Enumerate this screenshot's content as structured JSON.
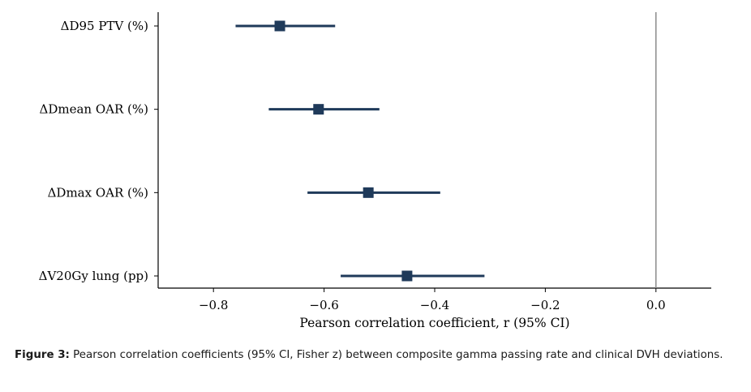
{
  "chart_data": {
    "type": "forest",
    "xlabel": "Pearson correlation coefficient, r (95% CI)",
    "xlim": [
      -0.9,
      0.1
    ],
    "xticks": [
      -0.8,
      -0.6,
      -0.4,
      -0.2,
      0.0
    ],
    "xtick_labels": [
      "−0.8",
      "−0.6",
      "−0.4",
      "−0.2",
      "0.0"
    ],
    "reference_line": 0.0,
    "categories": [
      "ΔD95 PTV (%)",
      "ΔDmean OAR (%)",
      "ΔDmax OAR (%)",
      "ΔV20Gy lung (pp)"
    ],
    "estimates": [
      -0.68,
      -0.61,
      -0.52,
      -0.45
    ],
    "ci_lower": [
      -0.76,
      -0.7,
      -0.63,
      -0.57
    ],
    "ci_upper": [
      -0.58,
      -0.5,
      -0.39,
      -0.31
    ],
    "marker_color": "#1f3a5a",
    "grid": false
  },
  "caption": {
    "label": "Figure 3:",
    "text": " Pearson correlation coefficients (95% CI, Fisher z) between composite gamma passing rate and clinical DVH deviations."
  }
}
